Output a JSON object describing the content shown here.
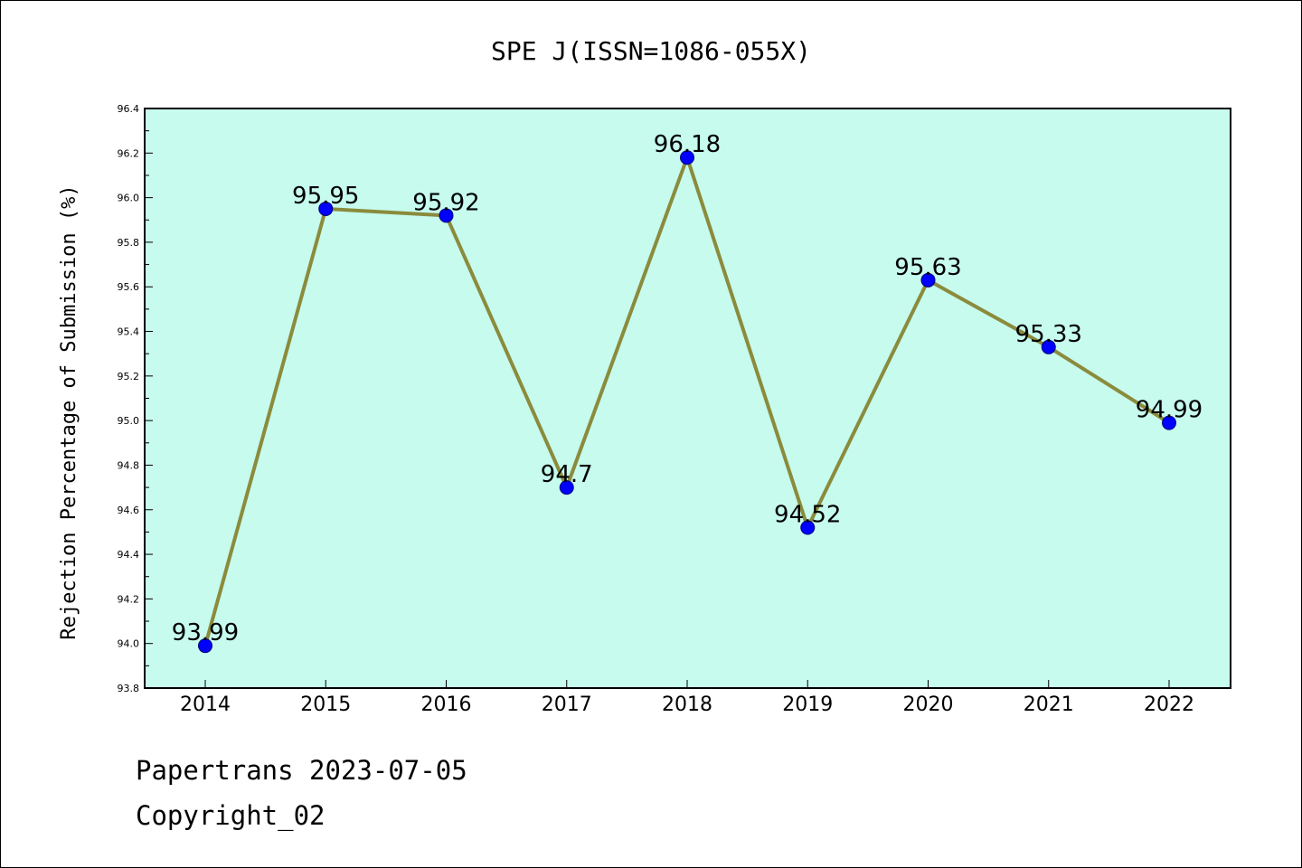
{
  "chart_data": {
    "type": "line",
    "title": "SPE J(ISSN=1086-055X)",
    "ylabel": "Rejection Percentage of Submission (%)",
    "xlabel": "",
    "categories": [
      "2014",
      "2015",
      "2016",
      "2017",
      "2018",
      "2019",
      "2020",
      "2021",
      "2022"
    ],
    "series": [
      {
        "values": [
          93.99,
          95.95,
          95.92,
          94.7,
          96.18,
          94.52,
          95.63,
          95.33,
          94.99
        ]
      }
    ],
    "data_labels": [
      "93.99",
      "95.95",
      "95.92",
      "94.7",
      "96.18",
      "94.52",
      "95.63",
      "95.33",
      "94.99"
    ],
    "ylim": [
      93.8,
      96.4
    ],
    "yticks": [
      "93.8",
      "94.0",
      "94.2",
      "94.4",
      "94.6",
      "94.8",
      "95.0",
      "95.2",
      "95.4",
      "95.6",
      "95.8",
      "96.0",
      "96.2",
      "96.4"
    ],
    "grid": false,
    "colors": {
      "plot_background": "#c6fbee",
      "line": "#8b8b3c",
      "marker": "#0000ff"
    }
  },
  "footer": {
    "line1": "Papertrans 2023-07-05",
    "line2": "Copyright_02"
  }
}
